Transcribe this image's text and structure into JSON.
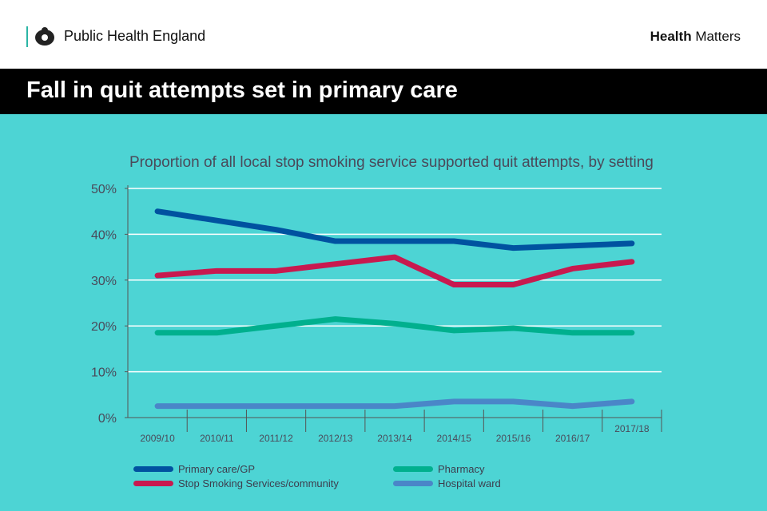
{
  "header": {
    "org": "Public Health England",
    "brand_bold": "Health",
    "brand_rest": " Matters"
  },
  "banner": {
    "title": "Fall in quit attempts set in primary care"
  },
  "chart_data": {
    "type": "line",
    "title": "Proportion of all local stop smoking service supported quit attempts, by setting",
    "categories": [
      "2009/10",
      "2010/11",
      "2011/12",
      "2012/13",
      "2013/14",
      "2014/15",
      "2015/16",
      "2016/17",
      "2017/18"
    ],
    "yticks": [
      "0%",
      "10%",
      "20%",
      "30%",
      "40%",
      "50%"
    ],
    "ylim": [
      0,
      50
    ],
    "grid": true,
    "legend_position": "bottom",
    "series": [
      {
        "name": "Primary care/GP",
        "color": "#0052a0",
        "values": [
          45,
          43,
          41,
          38.5,
          38.5,
          38.5,
          37,
          37.5,
          38
        ]
      },
      {
        "name": "Stop Smoking Services/community",
        "color": "#c8194f",
        "values": [
          31,
          32,
          32,
          33.5,
          35,
          29,
          29,
          32.5,
          34
        ]
      },
      {
        "name": "Pharmacy",
        "color": "#00b08e",
        "values": [
          18.5,
          18.5,
          20,
          21.5,
          20.5,
          19,
          19.5,
          18.5,
          18.5
        ]
      },
      {
        "name": "Hospital ward",
        "color": "#4a86c8",
        "values": [
          2.5,
          2.5,
          2.5,
          2.5,
          2.5,
          3.5,
          3.5,
          2.5,
          3.5
        ]
      }
    ]
  }
}
